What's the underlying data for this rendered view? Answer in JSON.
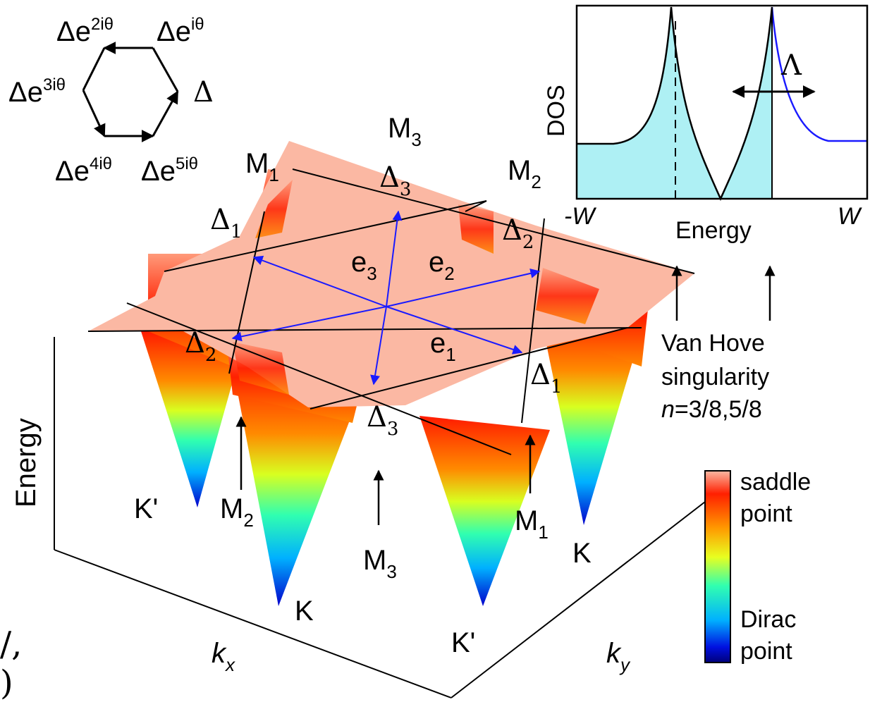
{
  "hexagon": {
    "base": "Δ",
    "labels": [
      {
        "base": "Δe",
        "sup": "2iθ"
      },
      {
        "base": "Δe",
        "sup": "iθ"
      },
      {
        "base": "Δe",
        "sup": "3iθ"
      },
      {
        "base": "Δ",
        "sup": ""
      },
      {
        "base": "Δe",
        "sup": "4iθ"
      },
      {
        "base": "Δe",
        "sup": "5iθ"
      }
    ]
  },
  "dos_inset": {
    "ylabel": "DOS",
    "xlabel": "Energy",
    "tick_left": "-W",
    "tick_right": "W",
    "gap_symbol": "Λ",
    "colors": {
      "filled": "#aef0f4",
      "unfilled_curve": "#1a1aff"
    }
  },
  "surface": {
    "gap_labels": [
      {
        "base": "Δ",
        "sub": "1"
      },
      {
        "base": "Δ",
        "sub": "2"
      },
      {
        "base": "Δ",
        "sub": "3"
      },
      {
        "base": "Δ",
        "sub": "1"
      },
      {
        "base": "Δ",
        "sub": "2"
      },
      {
        "base": "Δ",
        "sub": "3"
      }
    ],
    "nesting_vectors": [
      {
        "base": "e",
        "sub": "3"
      },
      {
        "base": "e",
        "sub": "2"
      },
      {
        "base": "e",
        "sub": "1"
      }
    ],
    "m_points": [
      {
        "base": "M",
        "sub": "3"
      },
      {
        "base": "M",
        "sub": "1"
      },
      {
        "base": "M",
        "sub": "2"
      },
      {
        "base": "M",
        "sub": "2"
      },
      {
        "base": "M",
        "sub": "3"
      },
      {
        "base": "M",
        "sub": "1"
      }
    ],
    "k_points": [
      "K'",
      "K",
      "K'",
      "K"
    ],
    "colors": {
      "plateau": "#fbb8a3",
      "nesting": "#1a1aff"
    }
  },
  "axes": {
    "energy": "Energy",
    "kx": {
      "base": "k",
      "sub": "x"
    },
    "ky": {
      "base": "k",
      "sub": "y"
    }
  },
  "vhs_note": {
    "line1": "Van Hove",
    "line2": "singularity",
    "n_symbol": "n",
    "n_value": "=3/8,5/8"
  },
  "colorbar": {
    "top_line1": "saddle",
    "top_line2": "point",
    "bottom_line1": "Dirac",
    "bottom_line2": "point"
  },
  "edge_text": {
    "line1": "/,",
    "line2": ")"
  }
}
